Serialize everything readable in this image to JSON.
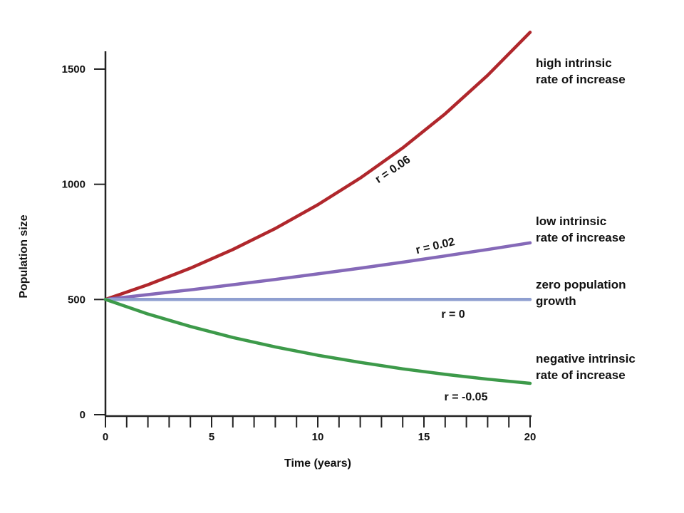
{
  "chart_data": {
    "type": "line",
    "title": "",
    "xlabel": "Time (years)",
    "ylabel": "Population size",
    "xlim": [
      0,
      20
    ],
    "ylim": [
      0,
      1500
    ],
    "x_ticks": [
      0,
      5,
      10,
      15,
      20
    ],
    "y_ticks": [
      0,
      500,
      1000,
      1500
    ],
    "grid": false,
    "legend": "none",
    "series": [
      {
        "key": "high",
        "r_label": "r = 0.06",
        "description": [
          "high intrinsic",
          "rate of increase"
        ],
        "color": "#b0272c",
        "x": [
          0,
          2,
          4,
          6,
          8,
          10,
          12,
          14,
          16,
          18,
          20
        ],
        "values": [
          500,
          564,
          636,
          717,
          808,
          911,
          1027,
          1158,
          1306,
          1473,
          1660
        ]
      },
      {
        "key": "low",
        "r_label": "r = 0.02",
        "description": [
          "low intrinsic",
          "rate of increase"
        ],
        "color": "#8569b8",
        "x": [
          0,
          2,
          4,
          6,
          8,
          10,
          12,
          14,
          16,
          18,
          20
        ],
        "values": [
          500,
          521,
          542,
          564,
          587,
          611,
          636,
          662,
          689,
          717,
          746
        ]
      },
      {
        "key": "zero",
        "r_label": "r = 0",
        "description": [
          "zero population",
          "growth"
        ],
        "color": "#8f9fd0",
        "x": [
          0,
          2,
          4,
          6,
          8,
          10,
          12,
          14,
          16,
          18,
          20
        ],
        "values": [
          500,
          500,
          500,
          500,
          500,
          500,
          500,
          500,
          500,
          500,
          500
        ]
      },
      {
        "key": "negative",
        "r_label": "r = -0.05",
        "description": [
          "negative intrinsic",
          "rate of increase"
        ],
        "color": "#3d9a4a",
        "x": [
          0,
          2,
          4,
          6,
          8,
          10,
          12,
          14,
          16,
          18,
          20
        ],
        "values": [
          500,
          437,
          383,
          335,
          294,
          258,
          227,
          199,
          175,
          154,
          136
        ]
      }
    ]
  }
}
